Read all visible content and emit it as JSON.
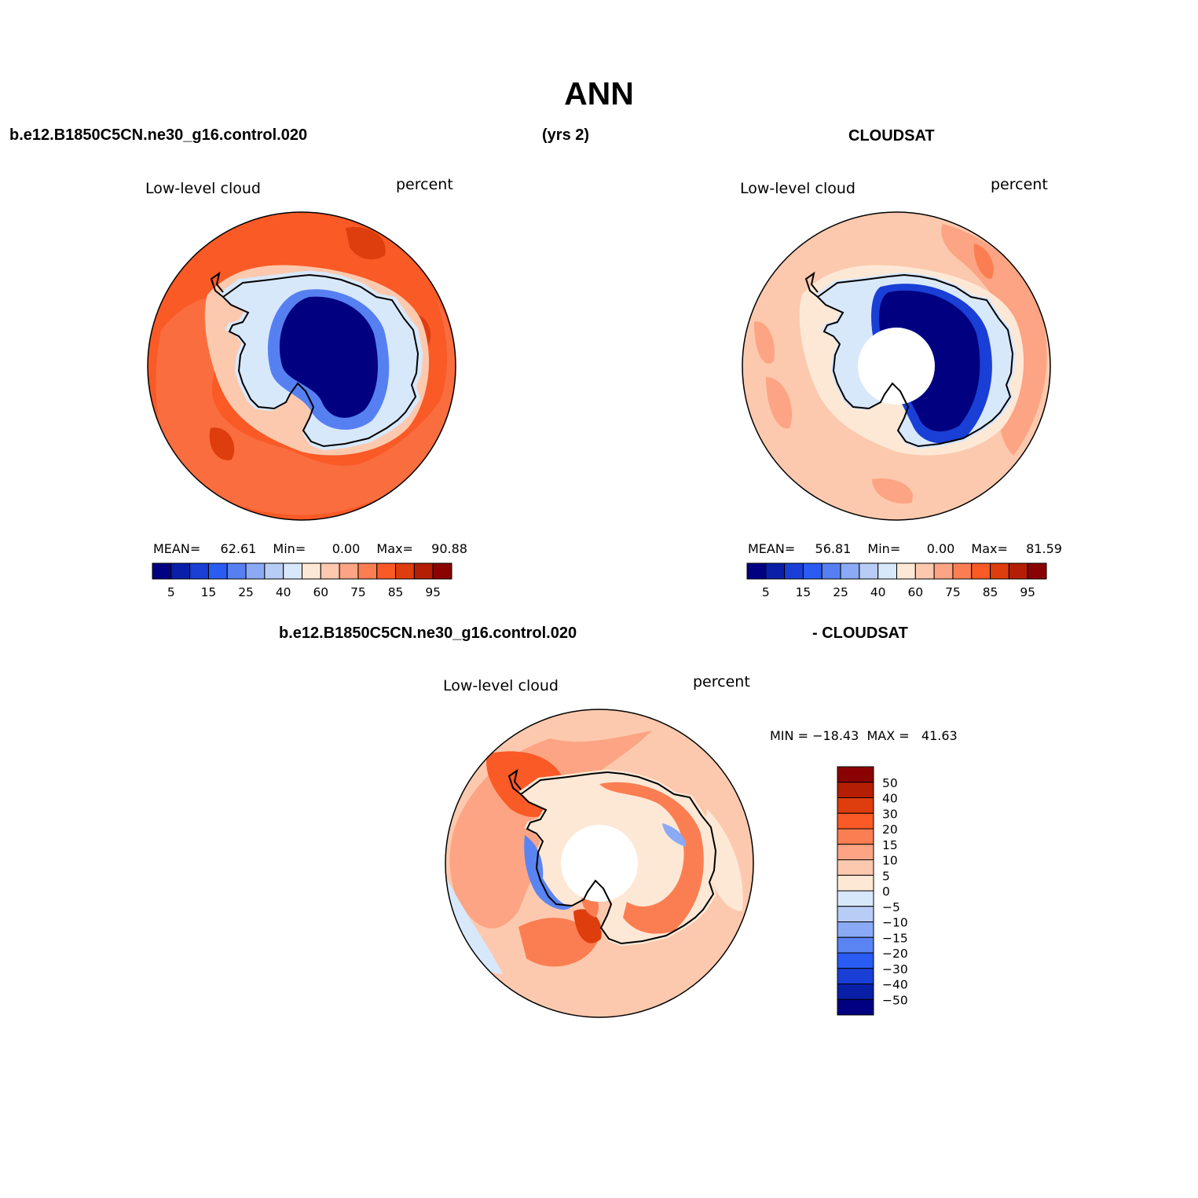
{
  "header": {
    "title": "ANN",
    "left_case": "b.e12.B1850C5CN.ne30_g16.control.020",
    "years": "(yrs 2)",
    "obs": "CLOUDSAT",
    "diff_case": "b.e12.B1850C5CN.ne30_g16.control.020",
    "diff_obs": "- CLOUDSAT"
  },
  "colors": {
    "abs_palette": [
      "#000080",
      "#0a1fa8",
      "#1a3fd6",
      "#2a5bf2",
      "#5680f2",
      "#8aaaf5",
      "#b8cdf5",
      "#d8e8fb",
      "#fde8d6",
      "#fcc9ae",
      "#fca483",
      "#fb7e52",
      "#f95a26",
      "#de3d0e",
      "#b41e04",
      "#8a0303"
    ],
    "diff_palette": [
      "#000080",
      "#0a1fa8",
      "#1a3fd6",
      "#2a5bf2",
      "#5a84f2",
      "#8aaaf5",
      "#b8cdf5",
      "#d8e8fb",
      "#fde8d6",
      "#fcc9ae",
      "#fca483",
      "#fb7e52",
      "#f95a26",
      "#de3d0e",
      "#b41e04",
      "#8a0303"
    ]
  },
  "panels": {
    "model": {
      "variable": "Low-level cloud",
      "units": "percent",
      "mean_label": "MEAN=",
      "mean": "62.61",
      "min_label": "Min=",
      "min": "0.00",
      "max_label": "Max=",
      "max": "90.88"
    },
    "obs": {
      "variable": "Low-level cloud",
      "units": "percent",
      "mean_label": "MEAN=",
      "mean": "56.81",
      "min_label": "Min=",
      "min": "0.00",
      "max_label": "Max=",
      "max": "81.59"
    },
    "diff": {
      "variable": "Low-level cloud",
      "units": "percent",
      "minmax_text": "MIN = −18.43  MAX =   41.63"
    }
  },
  "chart_data": [
    {
      "type": "heatmap",
      "title": "Low-level cloud",
      "units": "percent",
      "projection": "south polar stereographic",
      "colorbar": {
        "orientation": "horizontal",
        "labels": [
          "5",
          "15",
          "25",
          "40",
          "60",
          "75",
          "85",
          "95"
        ]
      },
      "mean": 62.61,
      "min": 0.0,
      "max": 90.88
    },
    {
      "type": "heatmap",
      "title": "Low-level cloud",
      "units": "percent",
      "projection": "south polar stereographic",
      "colorbar": {
        "orientation": "horizontal",
        "labels": [
          "5",
          "15",
          "25",
          "40",
          "60",
          "75",
          "85",
          "95"
        ]
      },
      "mean": 56.81,
      "min": 0.0,
      "max": 81.59,
      "missing_data": "polar hole"
    },
    {
      "type": "heatmap",
      "title": "Low-level cloud",
      "units": "percent",
      "projection": "south polar stereographic",
      "colorbar": {
        "orientation": "vertical",
        "labels": [
          "50",
          "40",
          "30",
          "20",
          "15",
          "10",
          "5",
          "0",
          "−5",
          "−10",
          "−15",
          "−20",
          "−30",
          "−40",
          "−50"
        ]
      },
      "min": -18.43,
      "max": 41.63,
      "missing_data": "polar hole"
    }
  ]
}
